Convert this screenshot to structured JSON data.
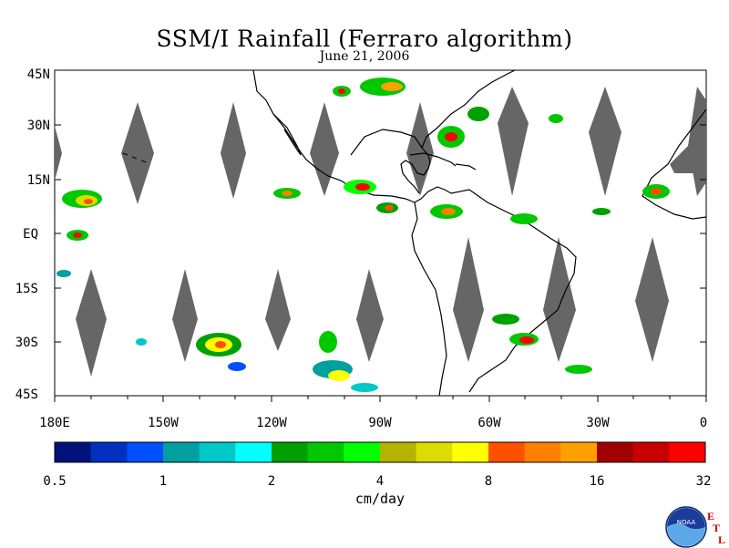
{
  "title": "SSM/I Rainfall (Ferraro algorithm)",
  "subtitle": "June 21, 2006",
  "axes": {
    "lat_labels": [
      "45N",
      "30N",
      "15N",
      "EQ",
      "15S",
      "30S",
      "45S"
    ],
    "lon_labels": [
      "180E",
      "150W",
      "120W",
      "90W",
      "60W",
      "30W",
      "0"
    ]
  },
  "colorbar": {
    "units": "cm/day",
    "tick_labels": [
      "0.5",
      "1",
      "2",
      "4",
      "8",
      "16",
      "32"
    ],
    "colors": [
      "#00127a",
      "#0030c0",
      "#0050ff",
      "#00a0a0",
      "#00c8c8",
      "#00ffff",
      "#00a000",
      "#00c800",
      "#00ff00",
      "#b4b400",
      "#dcdc00",
      "#ffff00",
      "#ff5000",
      "#ff8000",
      "#ffa000",
      "#a00000",
      "#c80000",
      "#ff0000"
    ]
  },
  "logo": {
    "name": "NOAA",
    "etl_letters": [
      "E",
      "T",
      "L"
    ]
  },
  "colors": {
    "swath_gap": "#666666",
    "coastline": "#000000",
    "background": "#ffffff"
  }
}
